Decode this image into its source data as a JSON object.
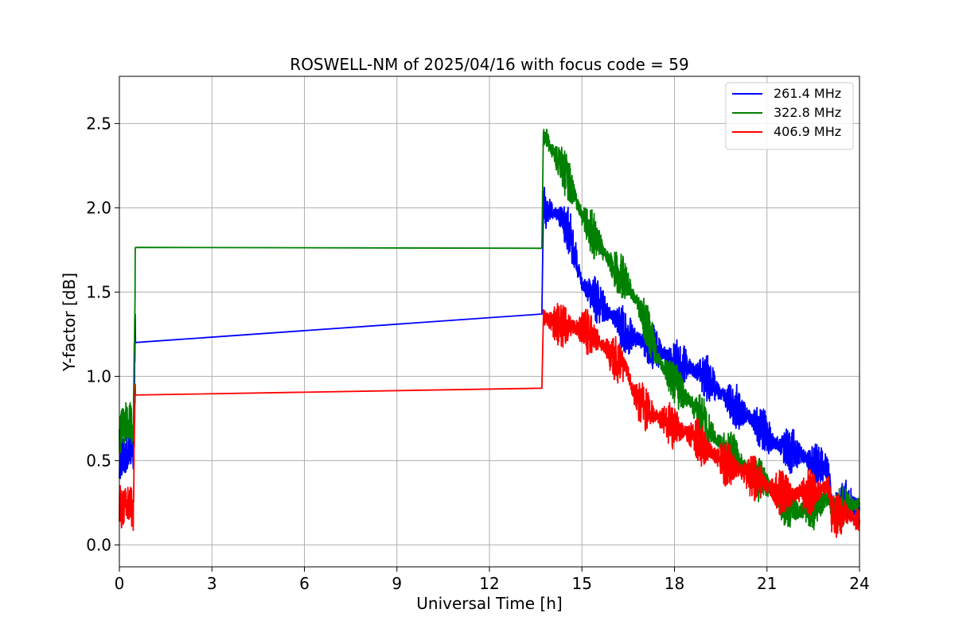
{
  "chart_data": {
    "type": "line",
    "title": "ROSWELL-NM of 2025/04/16 with focus code = 59",
    "xlabel": "Universal Time [h]",
    "ylabel": "Y-factor [dB]",
    "xlim": [
      0,
      24
    ],
    "ylim": [
      -0.13,
      2.78
    ],
    "xticks": [
      0,
      3,
      6,
      9,
      12,
      15,
      18,
      21,
      24
    ],
    "xtick_labels": [
      "0",
      "3",
      "6",
      "9",
      "12",
      "15",
      "18",
      "21",
      "24"
    ],
    "yticks": [
      0.0,
      0.5,
      1.0,
      1.5,
      2.0,
      2.5
    ],
    "ytick_labels": [
      "0.0",
      "0.5",
      "1.0",
      "1.5",
      "2.0",
      "2.5"
    ],
    "grid": true,
    "legend_position": "upper right",
    "series": [
      {
        "name": "261.4 MHz",
        "color": "#0000ff",
        "x": [
          0.0,
          0.1,
          0.2,
          0.3,
          0.45,
          0.52,
          13.7,
          13.75,
          14.0,
          14.3,
          14.6,
          15.0,
          15.5,
          16.0,
          16.5,
          17.0,
          17.5,
          18.0,
          18.5,
          19.0,
          19.5,
          20.0,
          20.5,
          21.0,
          21.5,
          22.0,
          22.5,
          23.0,
          23.1,
          23.5,
          24.0
        ],
        "values": [
          0.45,
          0.55,
          0.52,
          0.6,
          0.55,
          1.32,
          1.37,
          2.0,
          1.98,
          1.95,
          1.85,
          1.55,
          1.45,
          1.35,
          1.25,
          1.2,
          1.15,
          1.1,
          1.05,
          1.0,
          0.9,
          0.82,
          0.75,
          0.65,
          0.58,
          0.55,
          0.48,
          0.45,
          0.25,
          0.25,
          0.22
        ]
      },
      {
        "name": "322.8 MHz",
        "color": "#008000",
        "x": [
          0.0,
          0.1,
          0.2,
          0.3,
          0.45,
          0.52,
          13.7,
          13.75,
          14.0,
          14.3,
          14.6,
          15.0,
          15.5,
          16.0,
          16.5,
          17.0,
          17.5,
          18.0,
          18.5,
          19.0,
          19.5,
          20.0,
          20.5,
          21.0,
          21.5,
          22.0,
          22.5,
          23.0,
          23.1,
          23.5,
          24.0
        ],
        "values": [
          0.65,
          0.7,
          0.72,
          0.75,
          0.7,
          1.71,
          1.76,
          2.45,
          2.35,
          2.25,
          2.15,
          1.95,
          1.8,
          1.65,
          1.55,
          1.35,
          1.1,
          0.95,
          0.85,
          0.72,
          0.6,
          0.52,
          0.42,
          0.35,
          0.25,
          0.2,
          0.22,
          0.28,
          0.2,
          0.22,
          0.25
        ]
      },
      {
        "name": "406.9 MHz",
        "color": "#ff0000",
        "x": [
          0.0,
          0.1,
          0.2,
          0.3,
          0.45,
          0.52,
          13.7,
          13.75,
          14.0,
          14.5,
          15.0,
          15.5,
          16.0,
          16.5,
          16.7,
          17.0,
          17.5,
          18.0,
          18.5,
          19.0,
          19.5,
          20.0,
          20.5,
          21.0,
          21.5,
          22.0,
          22.5,
          23.0,
          23.1,
          23.5,
          24.0
        ],
        "values": [
          0.25,
          0.2,
          0.22,
          0.25,
          0.2,
          0.9,
          0.93,
          1.35,
          1.32,
          1.3,
          1.28,
          1.22,
          1.12,
          1.02,
          0.88,
          0.82,
          0.75,
          0.7,
          0.65,
          0.58,
          0.5,
          0.45,
          0.4,
          0.35,
          0.3,
          0.3,
          0.32,
          0.35,
          0.18,
          0.18,
          0.15
        ]
      }
    ]
  }
}
